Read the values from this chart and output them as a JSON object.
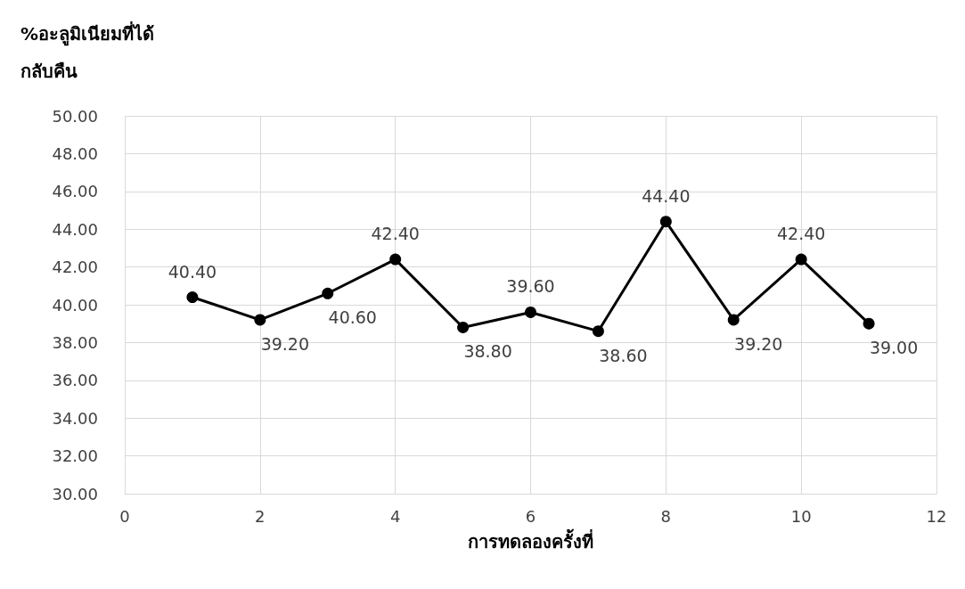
{
  "chart_data": {
    "type": "line",
    "ylabel": "%อะลูมิเนียมที่ได้\nกลับคืน",
    "xlabel": "การทดลองครั้งที่",
    "x": [
      1,
      2,
      3,
      4,
      5,
      6,
      7,
      8,
      9,
      10,
      11
    ],
    "series": [
      {
        "color": "#000000",
        "values": [
          40.4,
          39.2,
          40.6,
          42.4,
          38.8,
          39.6,
          38.6,
          44.4,
          39.2,
          42.4,
          39.0
        ],
        "value_labels": [
          "40.40",
          "39.20",
          "40.60",
          "42.40",
          "38.80",
          "39.60",
          "38.60",
          "44.40",
          "39.20",
          "42.40",
          "39.00"
        ]
      }
    ],
    "xlim": [
      0,
      12
    ],
    "xticks": [
      0,
      2,
      4,
      6,
      8,
      10,
      12
    ],
    "ylim": [
      30,
      50
    ],
    "yticks": [
      {
        "value": 30,
        "label": "30.00"
      },
      {
        "value": 32,
        "label": "32.00"
      },
      {
        "value": 34,
        "label": "34.00"
      },
      {
        "value": 36,
        "label": "36.00"
      },
      {
        "value": 38,
        "label": "38.00"
      },
      {
        "value": 40,
        "label": "40.00"
      },
      {
        "value": 42,
        "label": "42.00"
      },
      {
        "value": 44,
        "label": "44.00"
      },
      {
        "value": 46,
        "label": "46.00"
      },
      {
        "value": 48,
        "label": "48.00"
      },
      {
        "value": 50,
        "label": "50.00"
      }
    ],
    "grid": true,
    "marker": "circle",
    "line_style": "solid"
  }
}
